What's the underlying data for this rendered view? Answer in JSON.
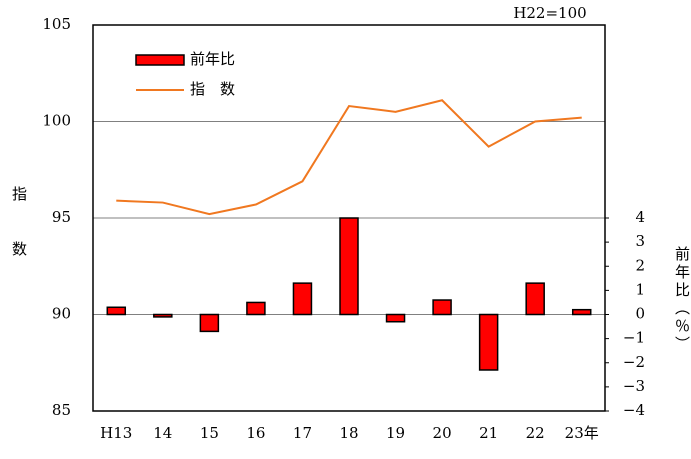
{
  "chart_data": {
    "type": "bar-line",
    "annotation": "H22=100",
    "y_label": "指数",
    "y2_label": "前年比（％）",
    "categories": [
      "H13",
      "14",
      "15",
      "16",
      "17",
      "18",
      "19",
      "20",
      "21",
      "22",
      "23年"
    ],
    "series": [
      {
        "name": "前年比",
        "type": "bar",
        "axis": "y2",
        "color": "#ff0000",
        "values": [
          0.3,
          -0.1,
          -0.7,
          0.5,
          1.3,
          4.0,
          -0.3,
          0.6,
          -2.3,
          1.3,
          0.2
        ]
      },
      {
        "name": "指　数",
        "type": "line",
        "color": "#f07820",
        "values": [
          95.9,
          95.8,
          95.2,
          95.7,
          96.9,
          100.8,
          100.5,
          101.1,
          98.7,
          100.0,
          100.2
        ]
      }
    ],
    "ylim": [
      85,
      105
    ],
    "yticks": [
      85,
      90,
      95,
      100,
      105
    ],
    "y2lim": [
      -4,
      12
    ],
    "y2ticks": [
      {
        "value": -4,
        "label": "−4"
      },
      {
        "value": -3,
        "label": "−3"
      },
      {
        "value": -2,
        "label": "−2"
      },
      {
        "value": -1,
        "label": "−1"
      },
      0,
      1,
      2,
      3,
      4
    ],
    "grid": true
  }
}
